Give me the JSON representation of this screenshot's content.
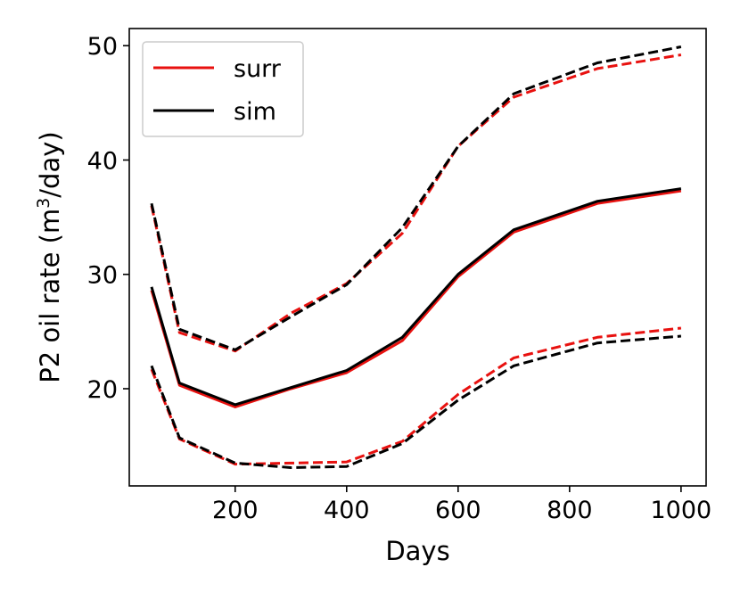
{
  "chart_data": {
    "type": "line",
    "title": "",
    "xlabel": "Days",
    "ylabel_main": "P2 oil rate (m",
    "ylabel_sup": "3",
    "ylabel_tail": "/day)",
    "xlim": [
      10,
      1045
    ],
    "ylim": [
      11.5,
      51.5
    ],
    "xticks": [
      200,
      400,
      600,
      800,
      1000
    ],
    "yticks": [
      20,
      30,
      40,
      50
    ],
    "grid": false,
    "legend_position": "upper-left",
    "legend": [
      {
        "label": "surr",
        "color": "#e8110f"
      },
      {
        "label": "sim",
        "color": "#000000"
      }
    ],
    "x": [
      50,
      100,
      200,
      300,
      400,
      500,
      600,
      700,
      850,
      1000
    ],
    "series": [
      {
        "name": "surr",
        "style": "solid",
        "color": "#e8110f",
        "values": [
          28.6,
          20.3,
          18.4,
          20.0,
          21.4,
          24.2,
          29.8,
          33.7,
          36.2,
          37.3
        ]
      },
      {
        "name": "sim",
        "style": "solid",
        "color": "#000000",
        "values": [
          28.9,
          20.5,
          18.6,
          20.1,
          21.6,
          24.5,
          30.0,
          33.9,
          36.4,
          37.5
        ]
      },
      {
        "name": "surr upper",
        "style": "dashed",
        "color": "#e8110f",
        "values": [
          36.0,
          24.9,
          23.3,
          26.6,
          29.2,
          33.6,
          41.2,
          45.5,
          48.0,
          49.2
        ]
      },
      {
        "name": "sim upper",
        "style": "dashed",
        "color": "#000000",
        "values": [
          36.2,
          25.2,
          23.4,
          26.3,
          29.1,
          34.1,
          41.2,
          45.8,
          48.5,
          49.9
        ]
      },
      {
        "name": "surr lower",
        "style": "dashed",
        "color": "#e8110f",
        "values": [
          21.7,
          15.6,
          13.4,
          13.5,
          13.6,
          15.4,
          19.5,
          22.7,
          24.5,
          25.3
        ]
      },
      {
        "name": "sim lower",
        "style": "dashed",
        "color": "#000000",
        "values": [
          22.0,
          15.7,
          13.5,
          13.1,
          13.2,
          15.2,
          19.0,
          22.0,
          24.0,
          24.6
        ]
      }
    ]
  }
}
